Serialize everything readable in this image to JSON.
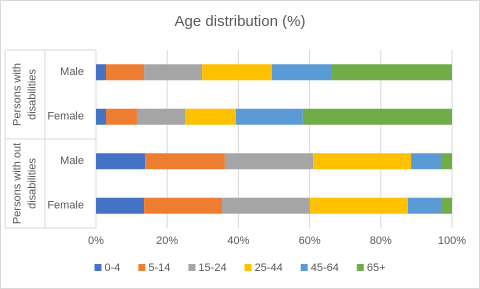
{
  "chart_data": {
    "type": "stacked-bar-horizontal",
    "title": "Age distribution (%)",
    "category_groups": [
      "Persons with disabilities",
      "Persons with out disabilities"
    ],
    "categories": [
      "Male",
      "Female",
      "Male",
      "Female"
    ],
    "series": [
      {
        "name": "0-4",
        "color": "#4472c4",
        "values": [
          2.8,
          2.8,
          13.8,
          13.5
        ]
      },
      {
        "name": "5-14",
        "color": "#ed7d31",
        "values": [
          10.7,
          8.7,
          22.4,
          21.9
        ]
      },
      {
        "name": "15-24",
        "color": "#a5a5a5",
        "values": [
          16.3,
          13.5,
          24.8,
          24.7
        ]
      },
      {
        "name": "25-44",
        "color": "#ffc000",
        "values": [
          19.6,
          14.3,
          27.5,
          27.5
        ]
      },
      {
        "name": "45-64",
        "color": "#5b9bd5",
        "values": [
          16.9,
          18.8,
          8.4,
          9.6
        ]
      },
      {
        "name": "65+",
        "color": "#70ad47",
        "values": [
          33.7,
          41.9,
          3.1,
          2.8
        ]
      }
    ],
    "xlim": [
      0,
      100
    ],
    "xticks": [
      {
        "value": 0,
        "label": "0%"
      },
      {
        "value": 20,
        "label": "20%"
      },
      {
        "value": 40,
        "label": "40%"
      },
      {
        "value": 60,
        "label": "60%"
      },
      {
        "value": 80,
        "label": "80%"
      },
      {
        "value": 100,
        "label": "100%"
      }
    ],
    "grid": true,
    "legend": "bottom"
  }
}
